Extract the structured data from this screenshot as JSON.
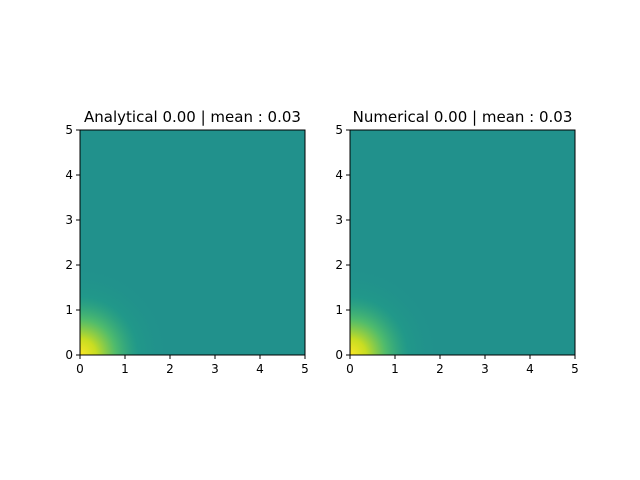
{
  "chart_data": [
    {
      "type": "heatmap",
      "title": "Analytical 0.00 | mean : 0.03",
      "xlabel": "",
      "ylabel": "",
      "xlim": [
        0,
        5
      ],
      "ylim": [
        0,
        5
      ],
      "xticks": [
        "0",
        "1",
        "2",
        "3",
        "4",
        "5"
      ],
      "yticks": [
        "0",
        "1",
        "2",
        "3",
        "4",
        "5"
      ],
      "colormap": "viridis",
      "grid": false,
      "field": {
        "peak_value": 1.0,
        "background_value": 0.5,
        "peak_location": [
          0,
          0
        ],
        "spread": 0.8
      }
    },
    {
      "type": "heatmap",
      "title": "Numerical 0.00 | mean : 0.03",
      "xlabel": "",
      "ylabel": "",
      "xlim": [
        0,
        5
      ],
      "ylim": [
        0,
        5
      ],
      "xticks": [
        "0",
        "1",
        "2",
        "3",
        "4",
        "5"
      ],
      "yticks": [
        "0",
        "1",
        "2",
        "3",
        "4",
        "5"
      ],
      "colormap": "viridis",
      "grid": false,
      "field": {
        "peak_value": 1.0,
        "background_value": 0.5,
        "peak_location": [
          0,
          0
        ],
        "spread": 0.8
      }
    }
  ]
}
